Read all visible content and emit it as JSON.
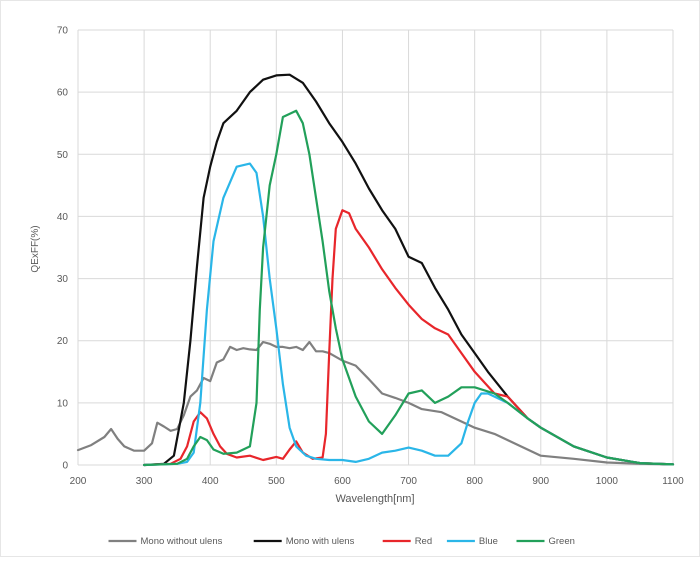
{
  "chart_data": {
    "type": "line",
    "title": "",
    "xlabel": "Wavelength[nm]",
    "ylabel": "QExFF(%)",
    "xlim": [
      200,
      1100
    ],
    "ylim": [
      0,
      70
    ],
    "x_ticks": [
      "200",
      "300",
      "400",
      "500",
      "600",
      "700",
      "800",
      "900",
      "1000",
      "1100"
    ],
    "y_ticks": [
      "0",
      "10",
      "20",
      "30",
      "40",
      "50",
      "60",
      "70"
    ],
    "grid": true,
    "legend_position": "bottom",
    "series": [
      {
        "name": "Mono without ulens",
        "color": "#808080",
        "points": [
          [
            200,
            2.4
          ],
          [
            220,
            3.2
          ],
          [
            240,
            4.5
          ],
          [
            250,
            5.8
          ],
          [
            260,
            4.2
          ],
          [
            270,
            3.0
          ],
          [
            285,
            2.3
          ],
          [
            300,
            2.3
          ],
          [
            312,
            3.5
          ],
          [
            320,
            6.8
          ],
          [
            330,
            6.2
          ],
          [
            340,
            5.5
          ],
          [
            350,
            5.8
          ],
          [
            360,
            8.0
          ],
          [
            370,
            11.0
          ],
          [
            380,
            12.0
          ],
          [
            390,
            14.0
          ],
          [
            400,
            13.5
          ],
          [
            410,
            16.5
          ],
          [
            420,
            17.0
          ],
          [
            430,
            19.0
          ],
          [
            440,
            18.5
          ],
          [
            450,
            18.8
          ],
          [
            460,
            18.6
          ],
          [
            470,
            18.5
          ],
          [
            480,
            19.8
          ],
          [
            490,
            19.5
          ],
          [
            500,
            19.0
          ],
          [
            510,
            19.0
          ],
          [
            520,
            18.8
          ],
          [
            530,
            19.0
          ],
          [
            540,
            18.5
          ],
          [
            550,
            19.8
          ],
          [
            560,
            18.3
          ],
          [
            570,
            18.3
          ],
          [
            580,
            18.0
          ],
          [
            600,
            16.8
          ],
          [
            620,
            16.0
          ],
          [
            640,
            13.8
          ],
          [
            660,
            11.5
          ],
          [
            680,
            10.8
          ],
          [
            700,
            10.0
          ],
          [
            720,
            9.0
          ],
          [
            750,
            8.5
          ],
          [
            780,
            7.0
          ],
          [
            800,
            6.0
          ],
          [
            830,
            5.0
          ],
          [
            850,
            4.0
          ],
          [
            870,
            3.0
          ],
          [
            900,
            1.5
          ],
          [
            950,
            1.0
          ],
          [
            1000,
            0.4
          ],
          [
            1050,
            0.2
          ],
          [
            1100,
            0.1
          ]
        ]
      },
      {
        "name": "Mono with ulens",
        "color": "#111111",
        "points": [
          [
            300,
            0
          ],
          [
            330,
            0.2
          ],
          [
            345,
            1.5
          ],
          [
            360,
            10
          ],
          [
            370,
            20
          ],
          [
            380,
            32
          ],
          [
            390,
            43
          ],
          [
            400,
            48
          ],
          [
            410,
            52
          ],
          [
            420,
            55
          ],
          [
            440,
            57
          ],
          [
            460,
            60
          ],
          [
            480,
            62
          ],
          [
            500,
            62.7
          ],
          [
            520,
            62.8
          ],
          [
            540,
            61.5
          ],
          [
            560,
            58.5
          ],
          [
            580,
            55
          ],
          [
            600,
            52
          ],
          [
            620,
            48.5
          ],
          [
            640,
            44.5
          ],
          [
            660,
            41
          ],
          [
            680,
            38
          ],
          [
            700,
            33.5
          ],
          [
            720,
            32.5
          ],
          [
            740,
            28.5
          ],
          [
            760,
            25
          ],
          [
            780,
            21
          ],
          [
            800,
            18
          ],
          [
            820,
            15
          ],
          [
            850,
            11
          ],
          [
            880,
            7.5
          ],
          [
            900,
            6
          ],
          [
            950,
            3
          ],
          [
            1000,
            1.2
          ],
          [
            1050,
            0.3
          ],
          [
            1100,
            0.1
          ]
        ]
      },
      {
        "name": "Red",
        "color": "#e8262b",
        "points": [
          [
            300,
            0
          ],
          [
            340,
            0.2
          ],
          [
            355,
            1
          ],
          [
            365,
            3
          ],
          [
            375,
            7
          ],
          [
            385,
            8.5
          ],
          [
            395,
            7.5
          ],
          [
            405,
            5
          ],
          [
            415,
            3
          ],
          [
            425,
            1.8
          ],
          [
            440,
            1.2
          ],
          [
            460,
            1.5
          ],
          [
            480,
            0.8
          ],
          [
            500,
            1.3
          ],
          [
            510,
            1
          ],
          [
            520,
            2.5
          ],
          [
            530,
            3.8
          ],
          [
            540,
            2
          ],
          [
            555,
            1
          ],
          [
            570,
            1.2
          ],
          [
            575,
            5
          ],
          [
            580,
            18
          ],
          [
            585,
            30
          ],
          [
            590,
            38
          ],
          [
            600,
            41
          ],
          [
            610,
            40.5
          ],
          [
            620,
            38
          ],
          [
            640,
            35
          ],
          [
            660,
            31.5
          ],
          [
            680,
            28.5
          ],
          [
            700,
            25.8
          ],
          [
            720,
            23.5
          ],
          [
            740,
            22
          ],
          [
            760,
            21
          ],
          [
            780,
            18
          ],
          [
            800,
            15
          ],
          [
            830,
            11.5
          ],
          [
            850,
            11
          ],
          [
            880,
            7.5
          ],
          [
            900,
            6
          ],
          [
            950,
            3
          ],
          [
            1000,
            1.2
          ],
          [
            1050,
            0.3
          ],
          [
            1100,
            0.1
          ]
        ]
      },
      {
        "name": "Blue",
        "color": "#2ab6e8",
        "points": [
          [
            300,
            0
          ],
          [
            350,
            0.2
          ],
          [
            365,
            0.5
          ],
          [
            375,
            2
          ],
          [
            385,
            10
          ],
          [
            395,
            25
          ],
          [
            405,
            36
          ],
          [
            420,
            43
          ],
          [
            440,
            48
          ],
          [
            460,
            48.5
          ],
          [
            470,
            47
          ],
          [
            480,
            40
          ],
          [
            490,
            30
          ],
          [
            500,
            22
          ],
          [
            510,
            13
          ],
          [
            520,
            6
          ],
          [
            530,
            3
          ],
          [
            545,
            1.5
          ],
          [
            560,
            1
          ],
          [
            580,
            0.8
          ],
          [
            600,
            0.8
          ],
          [
            620,
            0.5
          ],
          [
            640,
            1
          ],
          [
            660,
            2
          ],
          [
            680,
            2.3
          ],
          [
            700,
            2.8
          ],
          [
            720,
            2.3
          ],
          [
            740,
            1.5
          ],
          [
            760,
            1.5
          ],
          [
            780,
            3.5
          ],
          [
            790,
            7
          ],
          [
            800,
            10
          ],
          [
            810,
            11.5
          ],
          [
            820,
            11.5
          ],
          [
            850,
            10
          ],
          [
            880,
            7.5
          ],
          [
            900,
            6
          ],
          [
            950,
            3
          ],
          [
            1000,
            1.2
          ],
          [
            1050,
            0.3
          ],
          [
            1100,
            0.1
          ]
        ]
      },
      {
        "name": "Green",
        "color": "#22a05a",
        "points": [
          [
            300,
            0
          ],
          [
            350,
            0.2
          ],
          [
            365,
            1
          ],
          [
            375,
            3
          ],
          [
            385,
            4.5
          ],
          [
            395,
            4
          ],
          [
            405,
            2.5
          ],
          [
            420,
            1.8
          ],
          [
            440,
            2
          ],
          [
            460,
            3
          ],
          [
            470,
            10
          ],
          [
            475,
            25
          ],
          [
            480,
            35
          ],
          [
            490,
            45
          ],
          [
            500,
            50
          ],
          [
            510,
            56
          ],
          [
            520,
            56.5
          ],
          [
            530,
            57
          ],
          [
            540,
            55
          ],
          [
            550,
            50
          ],
          [
            560,
            43
          ],
          [
            570,
            36
          ],
          [
            580,
            28
          ],
          [
            590,
            22
          ],
          [
            600,
            17
          ],
          [
            620,
            11
          ],
          [
            640,
            7
          ],
          [
            660,
            5
          ],
          [
            680,
            8
          ],
          [
            700,
            11.5
          ],
          [
            720,
            12
          ],
          [
            740,
            10
          ],
          [
            760,
            11
          ],
          [
            780,
            12.5
          ],
          [
            800,
            12.5
          ],
          [
            830,
            11.5
          ],
          [
            850,
            10
          ],
          [
            880,
            7.5
          ],
          [
            900,
            6
          ],
          [
            950,
            3
          ],
          [
            1000,
            1.2
          ],
          [
            1050,
            0.3
          ],
          [
            1100,
            0.1
          ]
        ]
      }
    ]
  }
}
